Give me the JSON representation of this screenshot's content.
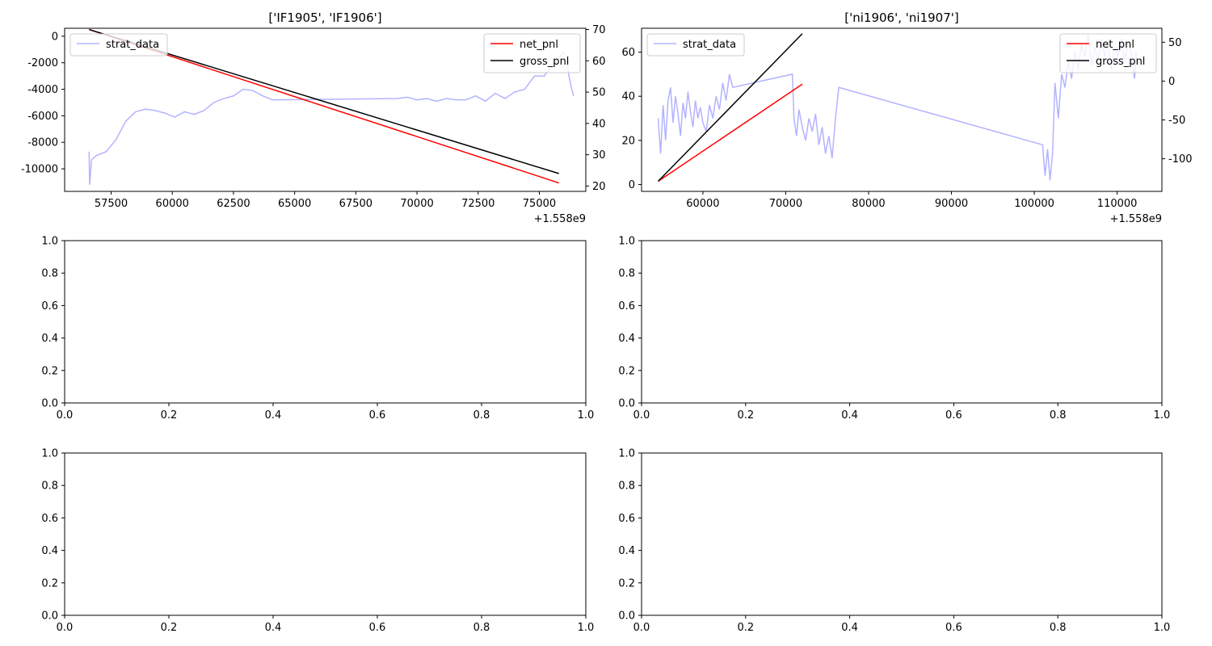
{
  "figure": {
    "background": "#ffffff",
    "layout": "3 rows x 2 columns"
  },
  "chart_data": [
    {
      "type": "line",
      "title": "['IF1905', 'IF1906']",
      "x_offset_label": "+1.558e9",
      "xlim": [
        55600,
        76900
      ],
      "xticks": [
        57500,
        60000,
        62500,
        65000,
        67500,
        70000,
        72500,
        75000
      ],
      "ylim": [
        -11700,
        600
      ],
      "yticks": [
        0,
        -2000,
        -4000,
        -6000,
        -8000,
        -10000
      ],
      "y2lim": [
        18.3,
        70.4
      ],
      "y2ticks": [
        20,
        30,
        40,
        50,
        60,
        70
      ],
      "legend_left": {
        "placement": "upper-left",
        "entries": [
          "strat_data"
        ]
      },
      "legend_right": {
        "placement": "upper-right",
        "entries": [
          "net_pnl",
          "gross_pnl"
        ]
      },
      "series": [
        {
          "name": "strat_data",
          "axis": "left",
          "color": "#b3b3ff",
          "x": [
            56600,
            56620,
            56700,
            56900,
            57300,
            57700,
            58100,
            58500,
            58900,
            59300,
            59700,
            60100,
            60500,
            60900,
            61300,
            61700,
            62100,
            62500,
            62900,
            63300,
            63700,
            64100,
            69200,
            69600,
            70000,
            70400,
            70800,
            71200,
            71600,
            72000,
            72400,
            72800,
            73200,
            73600,
            74000,
            74400,
            74800,
            75200,
            75600,
            76000,
            76100,
            76200,
            76300,
            76400
          ],
          "y": [
            -8700,
            -11200,
            -9300,
            -9000,
            -8700,
            -7800,
            -6400,
            -5700,
            -5500,
            -5600,
            -5800,
            -6100,
            -5700,
            -5900,
            -5600,
            -5000,
            -4700,
            -4500,
            -4000,
            -4100,
            -4500,
            -4800,
            -4700,
            -4600,
            -4800,
            -4700,
            -4900,
            -4700,
            -4800,
            -4800,
            -4500,
            -4900,
            -4300,
            -4700,
            -4200,
            -4000,
            -3000,
            -3000,
            -2000,
            -1200,
            -1500,
            -2900,
            -3800,
            -4500
          ]
        },
        {
          "name": "net_pnl",
          "axis": "right",
          "color": "#ff0000",
          "x": [
            56600,
            75800
          ],
          "y": [
            70,
            21
          ]
        },
        {
          "name": "gross_pnl",
          "axis": "right",
          "color": "#000000",
          "x": [
            56600,
            75800
          ],
          "y": [
            70,
            24
          ]
        }
      ]
    },
    {
      "type": "line",
      "title": "['ni1906', 'ni1907']",
      "x_offset_label": "+1.558e9",
      "xlim": [
        52600,
        115400
      ],
      "xticks": [
        60000,
        70000,
        80000,
        90000,
        100000,
        110000
      ],
      "ylim": [
        -3.1,
        70.8
      ],
      "yticks": [
        0,
        20,
        40,
        60
      ],
      "y2lim": [
        -142,
        68
      ],
      "y2ticks": [
        50,
        0,
        -50,
        -100
      ],
      "legend_left": {
        "placement": "upper-left",
        "entries": [
          "strat_data"
        ]
      },
      "legend_right": {
        "placement": "upper-right",
        "entries": [
          "net_pnl",
          "gross_pnl"
        ]
      },
      "series": [
        {
          "name": "strat_data",
          "axis": "left",
          "color": "#b3b3ff",
          "x": [
            54600,
            54900,
            55200,
            55500,
            55800,
            56100,
            56400,
            56700,
            57000,
            57300,
            57600,
            57900,
            58200,
            58500,
            58800,
            59100,
            59400,
            59700,
            60000,
            60400,
            60800,
            61200,
            61600,
            62000,
            62400,
            62800,
            63200,
            63600,
            70800,
            71000,
            71300,
            71600,
            72000,
            72400,
            72800,
            73200,
            73600,
            74000,
            74400,
            74800,
            75200,
            75600,
            76000,
            76400,
            101000,
            101300,
            101600,
            101900,
            102200,
            102500,
            102900,
            103300,
            103700,
            104100,
            104500,
            104900,
            105300,
            105700,
            106100,
            106500,
            106900,
            107300,
            107700,
            108100,
            108500,
            108900,
            109300,
            109700,
            110100,
            110500,
            110900,
            111300,
            111700,
            112100,
            112300
          ],
          "y": [
            30,
            14,
            36,
            20,
            38,
            44,
            28,
            40,
            32,
            22,
            37,
            30,
            42,
            33,
            26,
            38,
            30,
            35,
            28,
            24,
            36,
            30,
            40,
            34,
            46,
            38,
            50,
            44,
            50,
            30,
            22,
            34,
            26,
            20,
            30,
            24,
            32,
            18,
            26,
            14,
            22,
            12,
            30,
            44,
            18,
            4,
            16,
            2,
            14,
            46,
            30,
            50,
            44,
            56,
            48,
            60,
            52,
            64,
            58,
            68,
            54,
            62,
            56,
            66,
            58,
            64,
            52,
            62,
            58,
            66,
            56,
            64,
            60,
            48,
            60
          ]
        },
        {
          "name": "net_pnl",
          "axis": "right",
          "color": "#ff0000",
          "x": [
            54600,
            72000
          ],
          "y": [
            -129,
            -4
          ]
        },
        {
          "name": "gross_pnl",
          "axis": "right",
          "color": "#000000",
          "x": [
            54600,
            72000
          ],
          "y": [
            -129,
            61
          ]
        }
      ]
    },
    {
      "type": "line",
      "title": "",
      "xlim": [
        0,
        1
      ],
      "ylim": [
        0,
        1
      ],
      "xticks": [
        "0.0",
        "0.2",
        "0.4",
        "0.6",
        "0.8",
        "1.0"
      ],
      "yticks": [
        "0.0",
        "0.2",
        "0.4",
        "0.6",
        "0.8",
        "1.0"
      ],
      "series": []
    },
    {
      "type": "line",
      "title": "",
      "xlim": [
        0,
        1
      ],
      "ylim": [
        0,
        1
      ],
      "xticks": [
        "0.0",
        "0.2",
        "0.4",
        "0.6",
        "0.8",
        "1.0"
      ],
      "yticks": [
        "0.0",
        "0.2",
        "0.4",
        "0.6",
        "0.8",
        "1.0"
      ],
      "series": []
    },
    {
      "type": "line",
      "title": "",
      "xlim": [
        0,
        1
      ],
      "ylim": [
        0,
        1
      ],
      "xticks": [
        "0.0",
        "0.2",
        "0.4",
        "0.6",
        "0.8",
        "1.0"
      ],
      "yticks": [
        "0.0",
        "0.2",
        "0.4",
        "0.6",
        "0.8",
        "1.0"
      ],
      "series": []
    },
    {
      "type": "line",
      "title": "",
      "xlim": [
        0,
        1
      ],
      "ylim": [
        0,
        1
      ],
      "xticks": [
        "0.0",
        "0.2",
        "0.4",
        "0.6",
        "0.8",
        "1.0"
      ],
      "yticks": [
        "0.0",
        "0.2",
        "0.4",
        "0.6",
        "0.8",
        "1.0"
      ],
      "series": []
    }
  ]
}
